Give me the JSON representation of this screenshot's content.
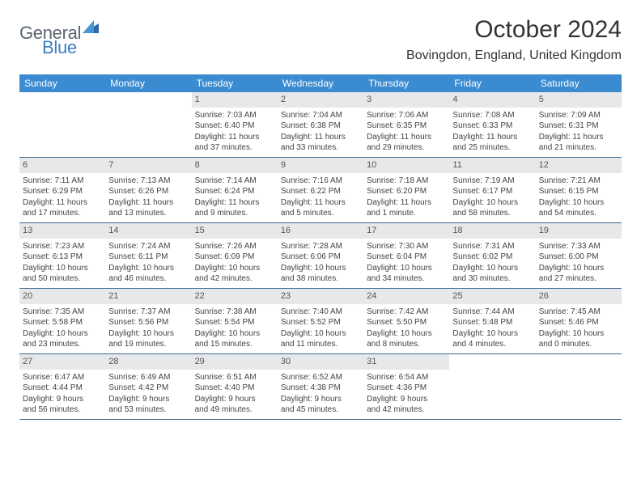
{
  "logo": {
    "textA": "General",
    "textB": "Blue"
  },
  "title": "October 2024",
  "location": "Bovingdon, England, United Kingdom",
  "header_bg": "#3a8bd0",
  "row_border": "#3a6a95",
  "daynum_bg": "#e7e8e9",
  "weekdays": [
    "Sunday",
    "Monday",
    "Tuesday",
    "Wednesday",
    "Thursday",
    "Friday",
    "Saturday"
  ],
  "weeks": [
    [
      null,
      null,
      {
        "n": "1",
        "sr": "Sunrise: 7:03 AM",
        "ss": "Sunset: 6:40 PM",
        "dl1": "Daylight: 11 hours",
        "dl2": "and 37 minutes."
      },
      {
        "n": "2",
        "sr": "Sunrise: 7:04 AM",
        "ss": "Sunset: 6:38 PM",
        "dl1": "Daylight: 11 hours",
        "dl2": "and 33 minutes."
      },
      {
        "n": "3",
        "sr": "Sunrise: 7:06 AM",
        "ss": "Sunset: 6:35 PM",
        "dl1": "Daylight: 11 hours",
        "dl2": "and 29 minutes."
      },
      {
        "n": "4",
        "sr": "Sunrise: 7:08 AM",
        "ss": "Sunset: 6:33 PM",
        "dl1": "Daylight: 11 hours",
        "dl2": "and 25 minutes."
      },
      {
        "n": "5",
        "sr": "Sunrise: 7:09 AM",
        "ss": "Sunset: 6:31 PM",
        "dl1": "Daylight: 11 hours",
        "dl2": "and 21 minutes."
      }
    ],
    [
      {
        "n": "6",
        "sr": "Sunrise: 7:11 AM",
        "ss": "Sunset: 6:29 PM",
        "dl1": "Daylight: 11 hours",
        "dl2": "and 17 minutes."
      },
      {
        "n": "7",
        "sr": "Sunrise: 7:13 AM",
        "ss": "Sunset: 6:26 PM",
        "dl1": "Daylight: 11 hours",
        "dl2": "and 13 minutes."
      },
      {
        "n": "8",
        "sr": "Sunrise: 7:14 AM",
        "ss": "Sunset: 6:24 PM",
        "dl1": "Daylight: 11 hours",
        "dl2": "and 9 minutes."
      },
      {
        "n": "9",
        "sr": "Sunrise: 7:16 AM",
        "ss": "Sunset: 6:22 PM",
        "dl1": "Daylight: 11 hours",
        "dl2": "and 5 minutes."
      },
      {
        "n": "10",
        "sr": "Sunrise: 7:18 AM",
        "ss": "Sunset: 6:20 PM",
        "dl1": "Daylight: 11 hours",
        "dl2": "and 1 minute."
      },
      {
        "n": "11",
        "sr": "Sunrise: 7:19 AM",
        "ss": "Sunset: 6:17 PM",
        "dl1": "Daylight: 10 hours",
        "dl2": "and 58 minutes."
      },
      {
        "n": "12",
        "sr": "Sunrise: 7:21 AM",
        "ss": "Sunset: 6:15 PM",
        "dl1": "Daylight: 10 hours",
        "dl2": "and 54 minutes."
      }
    ],
    [
      {
        "n": "13",
        "sr": "Sunrise: 7:23 AM",
        "ss": "Sunset: 6:13 PM",
        "dl1": "Daylight: 10 hours",
        "dl2": "and 50 minutes."
      },
      {
        "n": "14",
        "sr": "Sunrise: 7:24 AM",
        "ss": "Sunset: 6:11 PM",
        "dl1": "Daylight: 10 hours",
        "dl2": "and 46 minutes."
      },
      {
        "n": "15",
        "sr": "Sunrise: 7:26 AM",
        "ss": "Sunset: 6:09 PM",
        "dl1": "Daylight: 10 hours",
        "dl2": "and 42 minutes."
      },
      {
        "n": "16",
        "sr": "Sunrise: 7:28 AM",
        "ss": "Sunset: 6:06 PM",
        "dl1": "Daylight: 10 hours",
        "dl2": "and 38 minutes."
      },
      {
        "n": "17",
        "sr": "Sunrise: 7:30 AM",
        "ss": "Sunset: 6:04 PM",
        "dl1": "Daylight: 10 hours",
        "dl2": "and 34 minutes."
      },
      {
        "n": "18",
        "sr": "Sunrise: 7:31 AM",
        "ss": "Sunset: 6:02 PM",
        "dl1": "Daylight: 10 hours",
        "dl2": "and 30 minutes."
      },
      {
        "n": "19",
        "sr": "Sunrise: 7:33 AM",
        "ss": "Sunset: 6:00 PM",
        "dl1": "Daylight: 10 hours",
        "dl2": "and 27 minutes."
      }
    ],
    [
      {
        "n": "20",
        "sr": "Sunrise: 7:35 AM",
        "ss": "Sunset: 5:58 PM",
        "dl1": "Daylight: 10 hours",
        "dl2": "and 23 minutes."
      },
      {
        "n": "21",
        "sr": "Sunrise: 7:37 AM",
        "ss": "Sunset: 5:56 PM",
        "dl1": "Daylight: 10 hours",
        "dl2": "and 19 minutes."
      },
      {
        "n": "22",
        "sr": "Sunrise: 7:38 AM",
        "ss": "Sunset: 5:54 PM",
        "dl1": "Daylight: 10 hours",
        "dl2": "and 15 minutes."
      },
      {
        "n": "23",
        "sr": "Sunrise: 7:40 AM",
        "ss": "Sunset: 5:52 PM",
        "dl1": "Daylight: 10 hours",
        "dl2": "and 11 minutes."
      },
      {
        "n": "24",
        "sr": "Sunrise: 7:42 AM",
        "ss": "Sunset: 5:50 PM",
        "dl1": "Daylight: 10 hours",
        "dl2": "and 8 minutes."
      },
      {
        "n": "25",
        "sr": "Sunrise: 7:44 AM",
        "ss": "Sunset: 5:48 PM",
        "dl1": "Daylight: 10 hours",
        "dl2": "and 4 minutes."
      },
      {
        "n": "26",
        "sr": "Sunrise: 7:45 AM",
        "ss": "Sunset: 5:46 PM",
        "dl1": "Daylight: 10 hours",
        "dl2": "and 0 minutes."
      }
    ],
    [
      {
        "n": "27",
        "sr": "Sunrise: 6:47 AM",
        "ss": "Sunset: 4:44 PM",
        "dl1": "Daylight: 9 hours",
        "dl2": "and 56 minutes."
      },
      {
        "n": "28",
        "sr": "Sunrise: 6:49 AM",
        "ss": "Sunset: 4:42 PM",
        "dl1": "Daylight: 9 hours",
        "dl2": "and 53 minutes."
      },
      {
        "n": "29",
        "sr": "Sunrise: 6:51 AM",
        "ss": "Sunset: 4:40 PM",
        "dl1": "Daylight: 9 hours",
        "dl2": "and 49 minutes."
      },
      {
        "n": "30",
        "sr": "Sunrise: 6:52 AM",
        "ss": "Sunset: 4:38 PM",
        "dl1": "Daylight: 9 hours",
        "dl2": "and 45 minutes."
      },
      {
        "n": "31",
        "sr": "Sunrise: 6:54 AM",
        "ss": "Sunset: 4:36 PM",
        "dl1": "Daylight: 9 hours",
        "dl2": "and 42 minutes."
      },
      null,
      null
    ]
  ]
}
